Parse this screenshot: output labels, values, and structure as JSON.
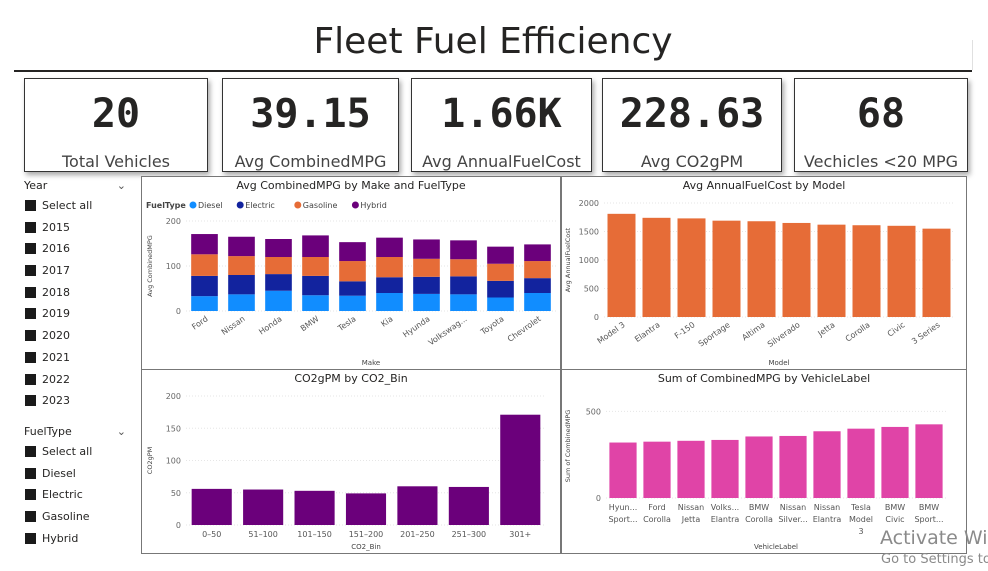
{
  "title": "Fleet Fuel Efficiency",
  "cards": [
    {
      "value": "20",
      "label": "Total Vehicles"
    },
    {
      "value": "39.15",
      "label": "Avg CombinedMPG"
    },
    {
      "value": "1.66K",
      "label": "Avg AnnualFuelCost"
    },
    {
      "value": "228.63",
      "label": "Avg CO2gPM"
    },
    {
      "value": "68",
      "label": "Vechicles <20 MPG"
    }
  ],
  "year_slicer": {
    "title": "Year",
    "items": [
      "Select all",
      "2015",
      "2016",
      "2017",
      "2018",
      "2019",
      "2020",
      "2021",
      "2022",
      "2023"
    ]
  },
  "fueltype_slicer": {
    "title": "FuelType",
    "items": [
      "Select all",
      "Diesel",
      "Electric",
      "Gasoline",
      "Hybrid"
    ]
  },
  "watermark": {
    "line1": "Activate Wir",
    "line2": "Go to Settings to"
  },
  "chart_data": [
    {
      "type": "bar",
      "stacked": true,
      "title": "Avg CombinedMPG by Make and FuelType",
      "xlabel": "Make",
      "ylabel": "Avg CombinedMPG",
      "legend_title": "FuelType",
      "legend_position": "top-left",
      "ylim": [
        0,
        200
      ],
      "yticks": [
        0,
        100,
        200
      ],
      "categories": [
        "Ford",
        "Nissan",
        "Honda",
        "BMW",
        "Tesla",
        "Kia",
        "Hyunda",
        "Volkswag...",
        "Toyota",
        "Chevrolet"
      ],
      "series": [
        {
          "name": "Diesel",
          "color": "#118DFF",
          "values": [
            33,
            37,
            45,
            35,
            34,
            40,
            38,
            37,
            30,
            40
          ]
        },
        {
          "name": "Electric",
          "color": "#12239E",
          "values": [
            45,
            43,
            37,
            43,
            32,
            35,
            38,
            40,
            37,
            33
          ]
        },
        {
          "name": "Gasoline",
          "color": "#E66C37",
          "values": [
            48,
            42,
            38,
            42,
            45,
            45,
            40,
            38,
            38,
            38
          ]
        },
        {
          "name": "Hybrid",
          "color": "#6B007B",
          "values": [
            45,
            43,
            40,
            48,
            42,
            43,
            43,
            42,
            38,
            37
          ]
        }
      ]
    },
    {
      "type": "bar",
      "title": "Avg AnnualFuelCost by Model",
      "xlabel": "Model",
      "ylabel": "Avg AnnualFuelCost",
      "ylim": [
        0,
        2000
      ],
      "yticks": [
        0,
        500,
        1000,
        1500,
        2000
      ],
      "color": "#E66C37",
      "categories": [
        "Model 3",
        "Elantra",
        "F-150",
        "Sportage",
        "Altima",
        "Silverado",
        "Jetta",
        "Corolla",
        "Civic",
        "3 Series"
      ],
      "values": [
        1810,
        1740,
        1730,
        1690,
        1680,
        1650,
        1620,
        1610,
        1600,
        1550
      ]
    },
    {
      "type": "bar",
      "title": "CO2gPM by CO2_Bin",
      "xlabel": "CO2_Bin",
      "ylabel": "CO2gPM",
      "ylim": [
        0,
        200
      ],
      "yticks": [
        0,
        50,
        100,
        150,
        200
      ],
      "color": "#6B007B",
      "categories": [
        "0–50",
        "51–100",
        "101–150",
        "151–200",
        "201–250",
        "251–300",
        "301+"
      ],
      "values": [
        56,
        55,
        53,
        49,
        60,
        59,
        171
      ]
    },
    {
      "type": "bar",
      "title": "Sum of CombinedMPG by VehicleLabel",
      "xlabel": "VehicleLabel",
      "ylabel": "Sum of CombinedMPG",
      "ylim": [
        0,
        600
      ],
      "yticks": [
        0,
        500
      ],
      "color": "#E044A7",
      "categories": [
        [
          "Hyun...",
          "Sport..."
        ],
        [
          "Ford",
          "Corolla"
        ],
        [
          "Nissan",
          "Jetta"
        ],
        [
          "Volks...",
          "Elantra"
        ],
        [
          "BMW",
          "Corolla"
        ],
        [
          "Nissan",
          "Silver..."
        ],
        [
          "Nissan",
          "Elantra"
        ],
        [
          "Tesla",
          "Model",
          "3"
        ],
        [
          "BMW",
          "Civic"
        ],
        [
          "BMW",
          "Sport..."
        ]
      ],
      "values": [
        320,
        325,
        330,
        335,
        355,
        358,
        385,
        400,
        410,
        425
      ]
    }
  ]
}
